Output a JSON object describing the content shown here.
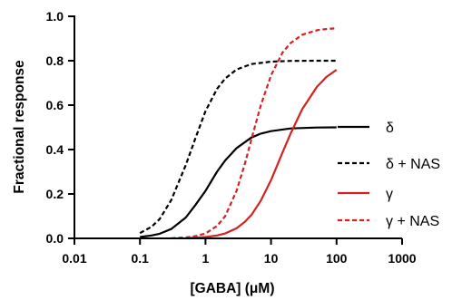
{
  "chart_data": {
    "type": "line",
    "xlabel": "[GABA] (μM)",
    "ylabel": "Fractional response",
    "x_scale": "log",
    "xlim": [
      0.01,
      1000
    ],
    "ylim": [
      0,
      1.0
    ],
    "x_ticks": [
      0.01,
      0.1,
      1,
      10,
      100,
      1000
    ],
    "x_tick_labels": [
      "0.01",
      "0.1",
      "1",
      "10",
      "100",
      "1000"
    ],
    "y_ticks": [
      0,
      0.2,
      0.4,
      0.6,
      0.8,
      1.0
    ],
    "y_tick_labels": [
      "0.0",
      "0.2",
      "0.4",
      "0.6",
      "0.8",
      "1.0"
    ],
    "grid": false,
    "legend_position": "right",
    "series": [
      {
        "name": "δ",
        "color": "#000000",
        "dashed": false,
        "x": [
          0.1,
          0.15,
          0.2,
          0.3,
          0.5,
          0.7,
          1,
          1.5,
          2,
          3,
          5,
          7,
          10,
          20,
          50,
          100
        ],
        "y": [
          0.006,
          0.013,
          0.021,
          0.042,
          0.094,
          0.15,
          0.214,
          0.3,
          0.351,
          0.407,
          0.454,
          0.472,
          0.483,
          0.495,
          0.499,
          0.5
        ]
      },
      {
        "name": "δ + NAS",
        "color": "#000000",
        "dashed": true,
        "x": [
          0.1,
          0.15,
          0.2,
          0.3,
          0.5,
          0.7,
          1,
          1.5,
          2,
          3,
          5,
          10,
          20,
          50,
          100
        ],
        "y": [
          0.024,
          0.052,
          0.087,
          0.172,
          0.33,
          0.45,
          0.573,
          0.673,
          0.72,
          0.761,
          0.785,
          0.796,
          0.799,
          0.8,
          0.8
        ]
      },
      {
        "name": "γ",
        "color": "#d42222",
        "dashed": false,
        "x": [
          0.5,
          1,
          1.5,
          2,
          3,
          4,
          5,
          7,
          10,
          15,
          20,
          30,
          50,
          70,
          100
        ],
        "y": [
          0.001,
          0.006,
          0.013,
          0.022,
          0.046,
          0.075,
          0.105,
          0.17,
          0.262,
          0.387,
          0.473,
          0.582,
          0.682,
          0.727,
          0.759
        ]
      },
      {
        "name": "γ + NAS",
        "color": "#d42222",
        "dashed": true,
        "x": [
          0.3,
          0.5,
          0.7,
          1,
          1.5,
          2,
          3,
          4,
          5,
          7,
          10,
          15,
          20,
          30,
          50,
          70,
          100
        ],
        "y": [
          0.001,
          0.004,
          0.01,
          0.022,
          0.056,
          0.1,
          0.216,
          0.338,
          0.445,
          0.6,
          0.734,
          0.837,
          0.88,
          0.917,
          0.937,
          0.943,
          0.946
        ]
      }
    ]
  }
}
